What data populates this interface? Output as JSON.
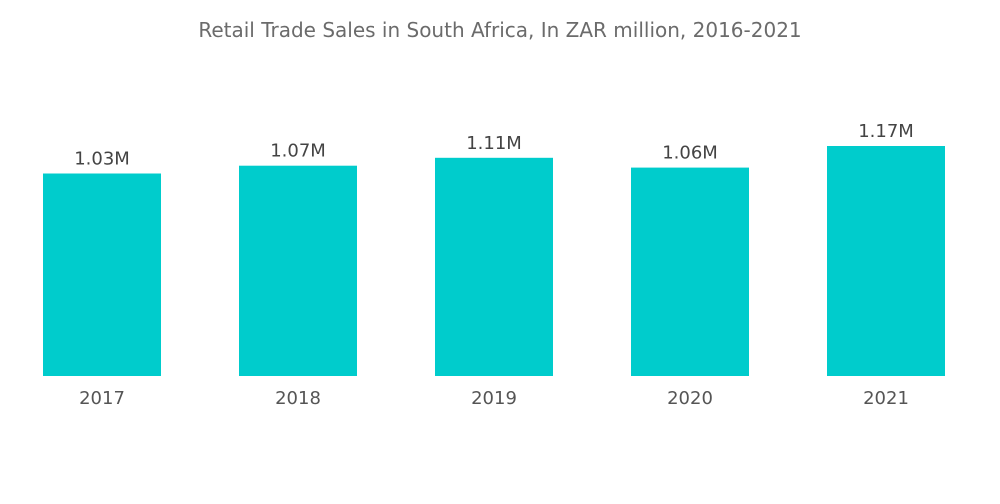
{
  "chart_data": {
    "type": "bar",
    "title": "Retail Trade Sales in South Africa, In ZAR million, 2016-2021",
    "categories": [
      "2017",
      "2018",
      "2019",
      "2020",
      "2021"
    ],
    "values": [
      1030000,
      1070000,
      1110000,
      1060000,
      1170000
    ],
    "data_labels": [
      "1.03M",
      "1.07M",
      "1.11M",
      "1.06M",
      "1.17M"
    ],
    "xlabel": "",
    "ylabel": "",
    "ylim": [
      0,
      1170000
    ],
    "grid": false,
    "legend": "none",
    "bar_color": "#00cccc"
  }
}
